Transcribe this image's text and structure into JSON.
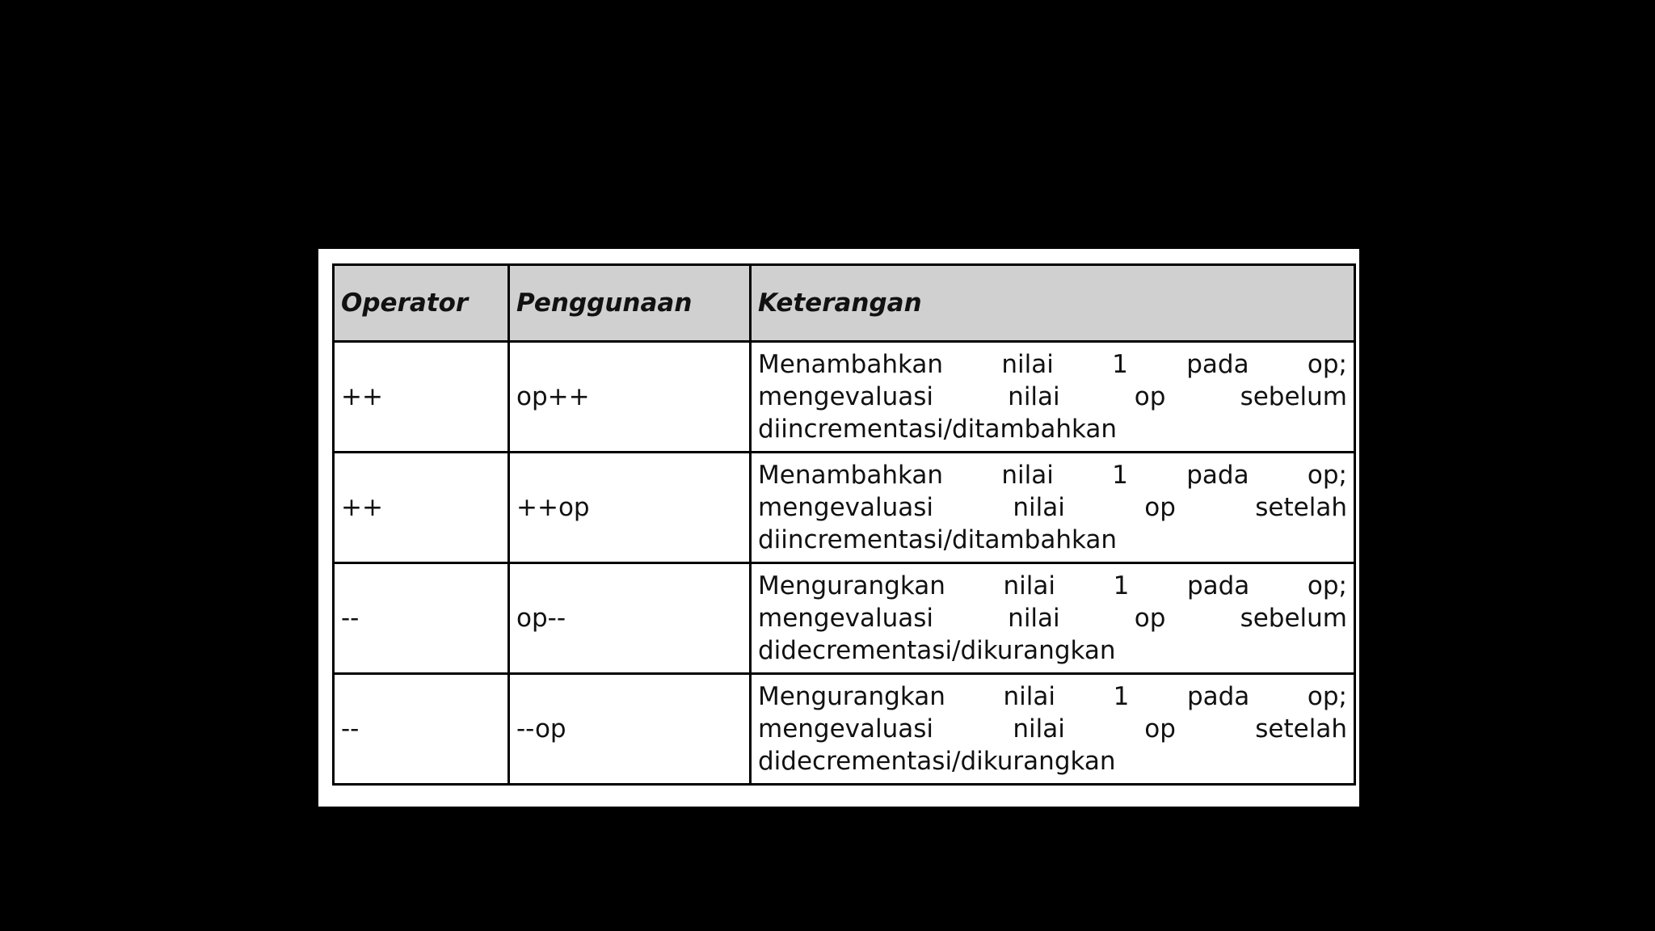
{
  "table": {
    "headers": [
      "Operator",
      "Penggunaan",
      "Keterangan"
    ],
    "rows": [
      {
        "operator": "++",
        "usage": "op++",
        "description": [
          "Menambahkan nilai 1 pada op;",
          "mengevaluasi nilai op sebelum",
          "diincrementasi/ditambahkan"
        ]
      },
      {
        "operator": "++",
        "usage": "++op",
        "description": [
          "Menambahkan nilai 1 pada op;",
          "mengevaluasi nilai op setelah",
          "diincrementasi/ditambahkan"
        ]
      },
      {
        "operator": "--",
        "usage": "op--",
        "description": [
          "Mengurangkan nilai 1 pada op;",
          "mengevaluasi nilai op sebelum",
          "didecrementasi/dikurangkan"
        ]
      },
      {
        "operator": "--",
        "usage": "--op",
        "description": [
          "Mengurangkan nilai 1 pada op;",
          "mengevaluasi nilai op setelah",
          "didecrementasi/dikurangkan"
        ]
      }
    ]
  }
}
